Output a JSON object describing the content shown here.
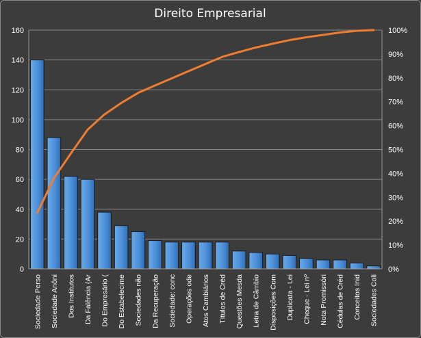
{
  "chart_data": {
    "type": "bar",
    "title": "Direito  Empresarial",
    "categories": [
      "Sociedade Perso",
      "Sociedade Anôni",
      "Dos Institutos",
      "Da Falência (Ar",
      "Do Empresário (",
      "Do Estabelecime",
      "Sociedades não",
      "Da Recuperação",
      "Sociedade: conc",
      "Operações ode",
      "Atos Cambiários",
      "Títulos de Créd",
      "Questões Mesda",
      "Letra de Câmbio",
      "Disposições Com",
      "Duplicata - Lei",
      "Cheque - Lei nº",
      "Nota Promissóri",
      "Cédulas de Créd",
      "Conceitos Inid",
      "Sociedades Coli"
    ],
    "series": [
      {
        "type": "bar",
        "axis": "left",
        "values": [
          140,
          88,
          62,
          60,
          38,
          29,
          25,
          19,
          18,
          18,
          18,
          18,
          12,
          11,
          10,
          9,
          7,
          6,
          6,
          4,
          2
        ]
      },
      {
        "type": "line",
        "axis": "right",
        "values": [
          23.4,
          38.0,
          48.3,
          58.3,
          64.7,
          69.5,
          73.7,
          76.8,
          79.8,
          82.8,
          85.8,
          88.8,
          90.8,
          92.7,
          94.3,
          95.8,
          97.0,
          98.0,
          99.0,
          99.7,
          100.0
        ]
      }
    ],
    "y_left": {
      "min": 0,
      "max": 160,
      "ticks": [
        "0",
        "20",
        "40",
        "60",
        "80",
        "100",
        "120",
        "140",
        "160"
      ]
    },
    "y_right": {
      "min": 0,
      "max": 100,
      "ticks": [
        "0%",
        "10%",
        "20%",
        "30%",
        "40%",
        "50%",
        "60%",
        "70%",
        "80%",
        "90%",
        "100%"
      ]
    },
    "grid": true,
    "legend": "none",
    "colors": {
      "bar": "#4d90d8",
      "bar_edge": "#1a1a1a",
      "line": "#ef7d31",
      "grid": "#8a8a8a",
      "background": "#3c3c3c"
    }
  }
}
